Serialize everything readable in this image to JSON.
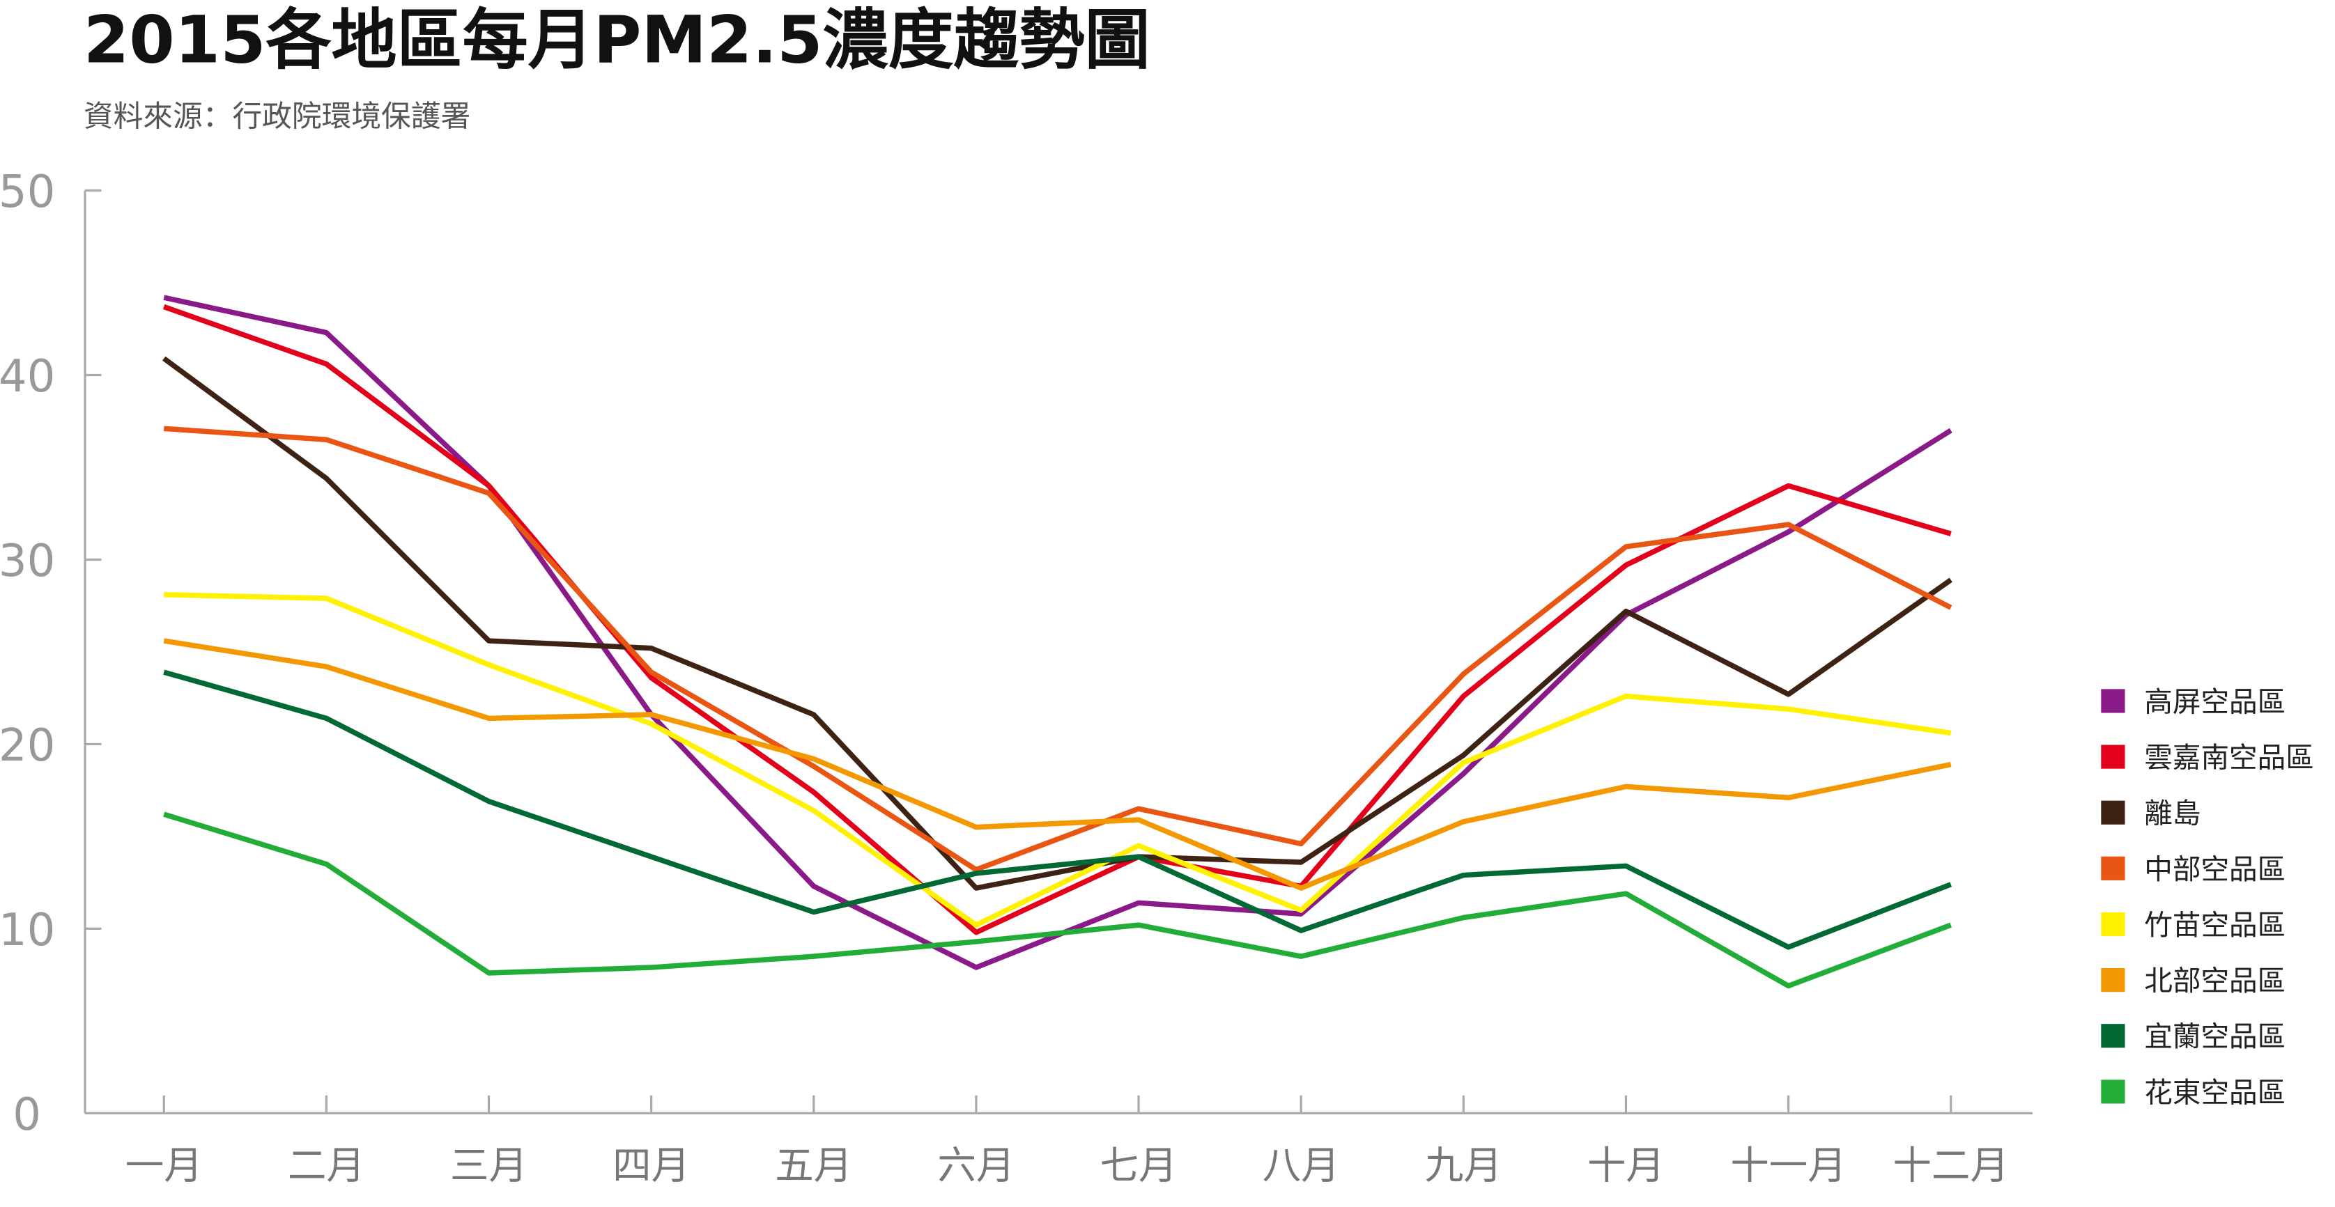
{
  "chart_data": {
    "type": "line",
    "title": "2015各地區每月PM2.5濃度趨勢圖",
    "subtitle": "資料來源：行政院環境保護署",
    "xlabel": "",
    "ylabel": "",
    "ylim": [
      0,
      50
    ],
    "yticks": [
      "0",
      "10",
      "20",
      "30",
      "40",
      "50"
    ],
    "grid": false,
    "legend_position": "right",
    "categories": [
      "一月",
      "二月",
      "三月",
      "四月",
      "五月",
      "六月",
      "七月",
      "八月",
      "九月",
      "十月",
      "十一月",
      "十二月"
    ],
    "series": [
      {
        "name": "高屏空品區",
        "color": "#8B1A89",
        "values": [
          44.2,
          42.3,
          34.0,
          21.6,
          12.3,
          7.9,
          11.4,
          10.8,
          18.4,
          27.0,
          31.5,
          37.0
        ]
      },
      {
        "name": "雲嘉南空品區",
        "color": "#E2001A",
        "values": [
          43.7,
          40.6,
          34.0,
          23.6,
          17.4,
          9.8,
          13.9,
          12.3,
          22.6,
          29.7,
          34.0,
          31.4
        ]
      },
      {
        "name": "離島",
        "color": "#3E2213",
        "values": [
          40.9,
          34.4,
          25.6,
          25.2,
          21.6,
          12.2,
          13.9,
          13.6,
          19.4,
          27.2,
          22.7,
          28.9
        ]
      },
      {
        "name": "中部空品區",
        "color": "#E95513",
        "values": [
          37.1,
          36.5,
          33.6,
          23.9,
          18.8,
          13.2,
          16.5,
          14.6,
          23.8,
          30.7,
          31.9,
          27.4
        ]
      },
      {
        "name": "竹苗空品區",
        "color": "#FFF100",
        "values": [
          28.1,
          27.9,
          24.3,
          21.1,
          16.4,
          10.2,
          14.5,
          11.0,
          19.0,
          22.6,
          21.9,
          20.6
        ]
      },
      {
        "name": "北部空品區",
        "color": "#F39800",
        "values": [
          25.6,
          24.2,
          21.4,
          21.6,
          19.2,
          15.5,
          15.9,
          12.2,
          15.8,
          17.7,
          17.1,
          18.9
        ]
      },
      {
        "name": "宜蘭空品區",
        "color": "#006934",
        "values": [
          23.9,
          21.4,
          16.9,
          13.9,
          10.9,
          13.0,
          13.9,
          9.9,
          12.9,
          13.4,
          9.0,
          12.4
        ]
      },
      {
        "name": "花東空品區",
        "color": "#22AC38",
        "values": [
          16.2,
          13.5,
          7.6,
          7.9,
          8.5,
          9.3,
          10.2,
          8.5,
          10.6,
          11.9,
          6.9,
          10.2
        ]
      }
    ]
  }
}
